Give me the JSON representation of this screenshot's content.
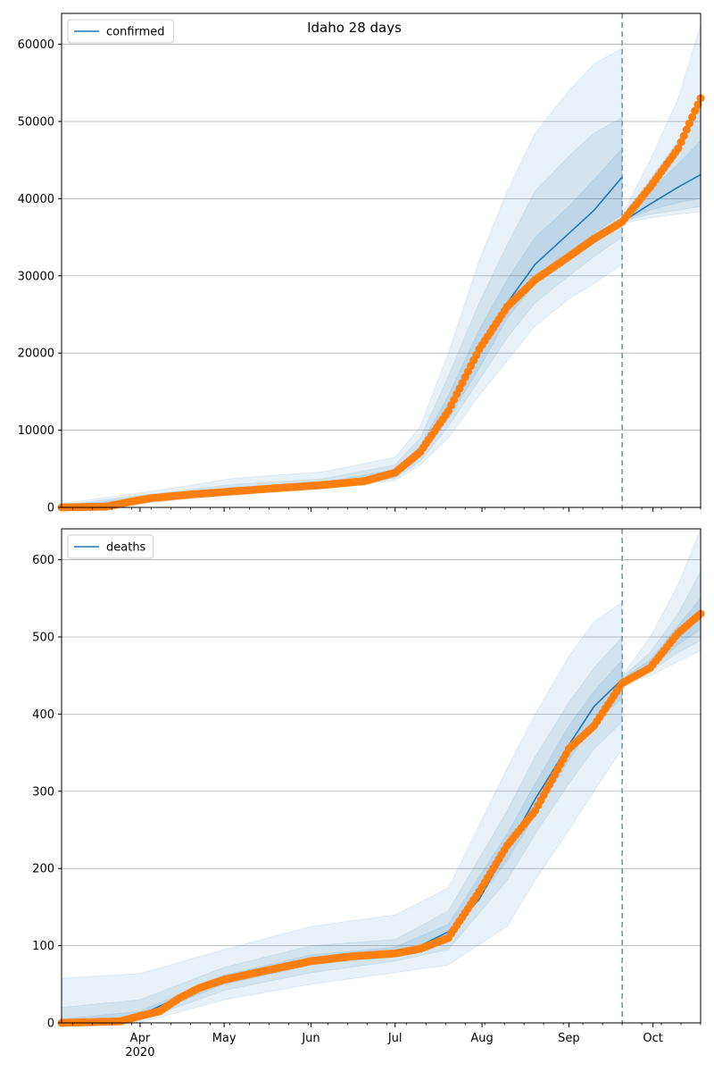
{
  "figure_title": "Idaho 28 days",
  "colors": {
    "model": "#1f77b4",
    "observed": "#ff7f0e",
    "band": "#1f77b4",
    "grid": "#b0b0b0",
    "forecast_line": "#6a9ab8"
  },
  "x_ticks": [
    {
      "label": "Apr",
      "date": "2020-04-01"
    },
    {
      "label": "May",
      "date": "2020-05-01"
    },
    {
      "label": "Jun",
      "date": "2020-06-01"
    },
    {
      "label": "Jul",
      "date": "2020-07-01"
    },
    {
      "label": "Aug",
      "date": "2020-08-01"
    },
    {
      "label": "Sep",
      "date": "2020-09-01"
    },
    {
      "label": "Oct",
      "date": "2020-10-01"
    }
  ],
  "x_year_label": "2020",
  "chart_data": [
    {
      "type": "line",
      "panel": "confirmed",
      "legend": "confirmed",
      "legend_position": "top-left",
      "xlim": [
        "2020-03-04",
        "2020-10-18"
      ],
      "ylim": [
        0,
        64000
      ],
      "yticks": [
        0,
        10000,
        20000,
        30000,
        40000,
        50000,
        60000
      ],
      "grid": "horizontal",
      "forecast_start": "2020-09-20",
      "series": [
        {
          "name": "confirmed",
          "role": "model-fit",
          "points": [
            [
              "2020-03-04",
              0
            ],
            [
              "2020-03-20",
              80
            ],
            [
              "2020-03-28",
              500
            ],
            [
              "2020-04-05",
              1100
            ],
            [
              "2020-04-20",
              1700
            ],
            [
              "2020-05-05",
              2250
            ],
            [
              "2020-05-20",
              2600
            ],
            [
              "2020-06-05",
              2900
            ],
            [
              "2020-06-20",
              3300
            ],
            [
              "2020-07-01",
              4300
            ],
            [
              "2020-07-10",
              7000
            ],
            [
              "2020-07-20",
              12500
            ],
            [
              "2020-07-31",
              20000
            ],
            [
              "2020-08-10",
              26500
            ],
            [
              "2020-08-20",
              31500
            ],
            [
              "2020-09-01",
              35500
            ],
            [
              "2020-09-10",
              38500
            ],
            [
              "2020-09-20",
              42800
            ]
          ]
        },
        {
          "name": "confirmed",
          "role": "forecast",
          "points": [
            [
              "2020-09-20",
              37000
            ],
            [
              "2020-09-30",
              39300
            ],
            [
              "2020-10-10",
              41500
            ],
            [
              "2020-10-18",
              43100
            ]
          ]
        },
        {
          "name": "",
          "role": "observed",
          "points": [
            [
              "2020-03-04",
              0
            ],
            [
              "2020-03-20",
              100
            ],
            [
              "2020-03-28",
              700
            ],
            [
              "2020-04-05",
              1200
            ],
            [
              "2020-04-20",
              1700
            ],
            [
              "2020-05-05",
              2100
            ],
            [
              "2020-05-20",
              2500
            ],
            [
              "2020-06-05",
              2900
            ],
            [
              "2020-06-20",
              3400
            ],
            [
              "2020-07-01",
              4500
            ],
            [
              "2020-07-10",
              7200
            ],
            [
              "2020-07-20",
              12500
            ],
            [
              "2020-07-31",
              20500
            ],
            [
              "2020-08-10",
              26000
            ],
            [
              "2020-08-20",
              29500
            ],
            [
              "2020-09-01",
              32500
            ],
            [
              "2020-09-10",
              34800
            ],
            [
              "2020-09-20",
              37000
            ],
            [
              "2020-09-30",
              41500
            ],
            [
              "2020-10-10",
              46500
            ],
            [
              "2020-10-18",
              53000
            ]
          ]
        }
      ],
      "bands": [
        {
          "level": "outer",
          "points": [
            [
              "2020-03-04",
              0,
              500
            ],
            [
              "2020-04-05",
              600,
              2100
            ],
            [
              "2020-05-05",
              1800,
              3800
            ],
            [
              "2020-06-05",
              2400,
              4600
            ],
            [
              "2020-07-01",
              3500,
              6500
            ],
            [
              "2020-07-10",
              5500,
              10500
            ],
            [
              "2020-07-20",
              9000,
              20000
            ],
            [
              "2020-07-31",
              14500,
              32000
            ],
            [
              "2020-08-10",
              19000,
              41000
            ],
            [
              "2020-08-20",
              23500,
              48500
            ],
            [
              "2020-09-01",
              27000,
              54000
            ],
            [
              "2020-09-10",
              29000,
              57500
            ],
            [
              "2020-09-20",
              31500,
              59500
            ]
          ]
        },
        {
          "level": "middle",
          "points": [
            [
              "2020-03-04",
              0,
              300
            ],
            [
              "2020-04-05",
              800,
              1700
            ],
            [
              "2020-05-05",
              2000,
              3000
            ],
            [
              "2020-06-05",
              2600,
              3700
            ],
            [
              "2020-07-01",
              3800,
              5500
            ],
            [
              "2020-07-10",
              6000,
              9000
            ],
            [
              "2020-07-20",
              10500,
              17000
            ],
            [
              "2020-07-31",
              16500,
              26500
            ],
            [
              "2020-08-10",
              22000,
              34000
            ],
            [
              "2020-08-20",
              26500,
              41000
            ],
            [
              "2020-09-01",
              30000,
              45500
            ],
            [
              "2020-09-10",
              32500,
              48500
            ],
            [
              "2020-09-20",
              35000,
              50500
            ]
          ]
        },
        {
          "level": "inner",
          "points": [
            [
              "2020-03-04",
              0,
              150
            ],
            [
              "2020-04-05",
              950,
              1400
            ],
            [
              "2020-05-05",
              2100,
              2600
            ],
            [
              "2020-06-05",
              2750,
              3200
            ],
            [
              "2020-07-01",
              4000,
              4900
            ],
            [
              "2020-07-10",
              6500,
              8000
            ],
            [
              "2020-07-20",
              11500,
              14500
            ],
            [
              "2020-07-31",
              18000,
              23000
            ],
            [
              "2020-08-10",
              24500,
              29500
            ],
            [
              "2020-08-20",
              29000,
              35000
            ],
            [
              "2020-09-01",
              33000,
              39000
            ],
            [
              "2020-09-10",
              35500,
              42500
            ],
            [
              "2020-09-20",
              38000,
              46500
            ]
          ]
        },
        {
          "level": "forecast-outer",
          "points": [
            [
              "2020-09-20",
              36800,
              38000
            ],
            [
              "2020-09-30",
              37500,
              45000
            ],
            [
              "2020-10-10",
              38000,
              53000
            ],
            [
              "2020-10-18",
              38300,
              62500
            ]
          ]
        },
        {
          "level": "forecast-middle",
          "points": [
            [
              "2020-09-20",
              37000,
              37800
            ],
            [
              "2020-09-30",
              38000,
              42500
            ],
            [
              "2020-10-10",
              38500,
              47500
            ],
            [
              "2020-10-18",
              39000,
              53000
            ]
          ]
        },
        {
          "level": "forecast-inner",
          "points": [
            [
              "2020-09-20",
              37000,
              37500
            ],
            [
              "2020-09-30",
              38500,
              41000
            ],
            [
              "2020-10-10",
              39500,
              44500
            ],
            [
              "2020-10-18",
              40000,
              47500
            ]
          ]
        }
      ]
    },
    {
      "type": "line",
      "panel": "deaths",
      "legend": "deaths",
      "legend_position": "top-left",
      "xlim": [
        "2020-03-04",
        "2020-10-18"
      ],
      "ylim": [
        0,
        640
      ],
      "yticks": [
        0,
        100,
        200,
        300,
        400,
        500,
        600
      ],
      "grid": "horizontal",
      "forecast_start": "2020-09-20",
      "series": [
        {
          "name": "deaths",
          "role": "model-fit",
          "points": [
            [
              "2020-03-04",
              0
            ],
            [
              "2020-03-20",
              2
            ],
            [
              "2020-04-01",
              10
            ],
            [
              "2020-04-10",
              25
            ],
            [
              "2020-04-20",
              42
            ],
            [
              "2020-05-01",
              55
            ],
            [
              "2020-05-15",
              68
            ],
            [
              "2020-06-01",
              80
            ],
            [
              "2020-06-15",
              86
            ],
            [
              "2020-07-01",
              92
            ],
            [
              "2020-07-10",
              100
            ],
            [
              "2020-07-20",
              118
            ],
            [
              "2020-07-31",
              160
            ],
            [
              "2020-08-10",
              225
            ],
            [
              "2020-08-20",
              290
            ],
            [
              "2020-09-01",
              360
            ],
            [
              "2020-09-10",
              410
            ],
            [
              "2020-09-20",
              445
            ]
          ]
        },
        {
          "name": "deaths",
          "role": "forecast",
          "points": [
            [
              "2020-09-20",
              442
            ],
            [
              "2020-09-30",
              462
            ],
            [
              "2020-10-10",
              500
            ],
            [
              "2020-10-18",
              530
            ]
          ]
        },
        {
          "name": "",
          "role": "observed",
          "points": [
            [
              "2020-03-04",
              0
            ],
            [
              "2020-03-25",
              2
            ],
            [
              "2020-04-01",
              9
            ],
            [
              "2020-04-08",
              15
            ],
            [
              "2020-04-15",
              32
            ],
            [
              "2020-04-22",
              45
            ],
            [
              "2020-05-01",
              56
            ],
            [
              "2020-05-15",
              67
            ],
            [
              "2020-06-01",
              80
            ],
            [
              "2020-06-15",
              86
            ],
            [
              "2020-07-01",
              90
            ],
            [
              "2020-07-10",
              96
            ],
            [
              "2020-07-20",
              110
            ],
            [
              "2020-07-31",
              170
            ],
            [
              "2020-08-10",
              230
            ],
            [
              "2020-08-20",
              275
            ],
            [
              "2020-09-01",
              355
            ],
            [
              "2020-09-10",
              385
            ],
            [
              "2020-09-20",
              440
            ],
            [
              "2020-09-30",
              460
            ],
            [
              "2020-10-10",
              505
            ],
            [
              "2020-10-18",
              530
            ]
          ]
        }
      ],
      "bands": [
        {
          "level": "outer",
          "points": [
            [
              "2020-03-04",
              0,
              58
            ],
            [
              "2020-04-01",
              0,
              64
            ],
            [
              "2020-05-01",
              30,
              95
            ],
            [
              "2020-06-01",
              50,
              125
            ],
            [
              "2020-07-01",
              65,
              140
            ],
            [
              "2020-07-20",
              75,
              175
            ],
            [
              "2020-08-10",
              125,
              330
            ],
            [
              "2020-08-20",
              185,
              400
            ],
            [
              "2020-09-01",
              250,
              475
            ],
            [
              "2020-09-10",
              300,
              520
            ],
            [
              "2020-09-20",
              355,
              545
            ]
          ]
        },
        {
          "level": "middle",
          "points": [
            [
              "2020-03-04",
              0,
              20
            ],
            [
              "2020-04-01",
              3,
              30
            ],
            [
              "2020-05-01",
              42,
              72
            ],
            [
              "2020-06-01",
              65,
              100
            ],
            [
              "2020-07-01",
              80,
              108
            ],
            [
              "2020-07-20",
              95,
              145
            ],
            [
              "2020-08-10",
              185,
              275
            ],
            [
              "2020-08-20",
              245,
              345
            ],
            [
              "2020-09-01",
              310,
              415
            ],
            [
              "2020-09-10",
              355,
              460
            ],
            [
              "2020-09-20",
              390,
              500
            ]
          ]
        },
        {
          "level": "inner",
          "points": [
            [
              "2020-03-04",
              0,
              5
            ],
            [
              "2020-04-01",
              7,
              15
            ],
            [
              "2020-05-01",
              50,
              62
            ],
            [
              "2020-06-01",
              75,
              88
            ],
            [
              "2020-07-01",
              88,
              98
            ],
            [
              "2020-07-20",
              110,
              128
            ],
            [
              "2020-08-10",
              210,
              245
            ],
            [
              "2020-08-20",
              270,
              310
            ],
            [
              "2020-09-01",
              340,
              385
            ],
            [
              "2020-09-10",
              390,
              430
            ],
            [
              "2020-09-20",
              420,
              470
            ]
          ]
        },
        {
          "level": "forecast-outer",
          "points": [
            [
              "2020-09-20",
              438,
              450
            ],
            [
              "2020-09-30",
              450,
              500
            ],
            [
              "2020-10-10",
              468,
              568
            ],
            [
              "2020-10-18",
              482,
              640
            ]
          ]
        },
        {
          "level": "forecast-middle",
          "points": [
            [
              "2020-09-20",
              440,
              448
            ],
            [
              "2020-09-30",
              455,
              480
            ],
            [
              "2020-10-10",
              480,
              530
            ],
            [
              "2020-10-18",
              495,
              585
            ]
          ]
        },
        {
          "level": "forecast-inner",
          "points": [
            [
              "2020-09-20",
              440,
              446
            ],
            [
              "2020-09-30",
              458,
              470
            ],
            [
              "2020-10-10",
              490,
              515
            ],
            [
              "2020-10-18",
              510,
              550
            ]
          ]
        }
      ]
    }
  ]
}
